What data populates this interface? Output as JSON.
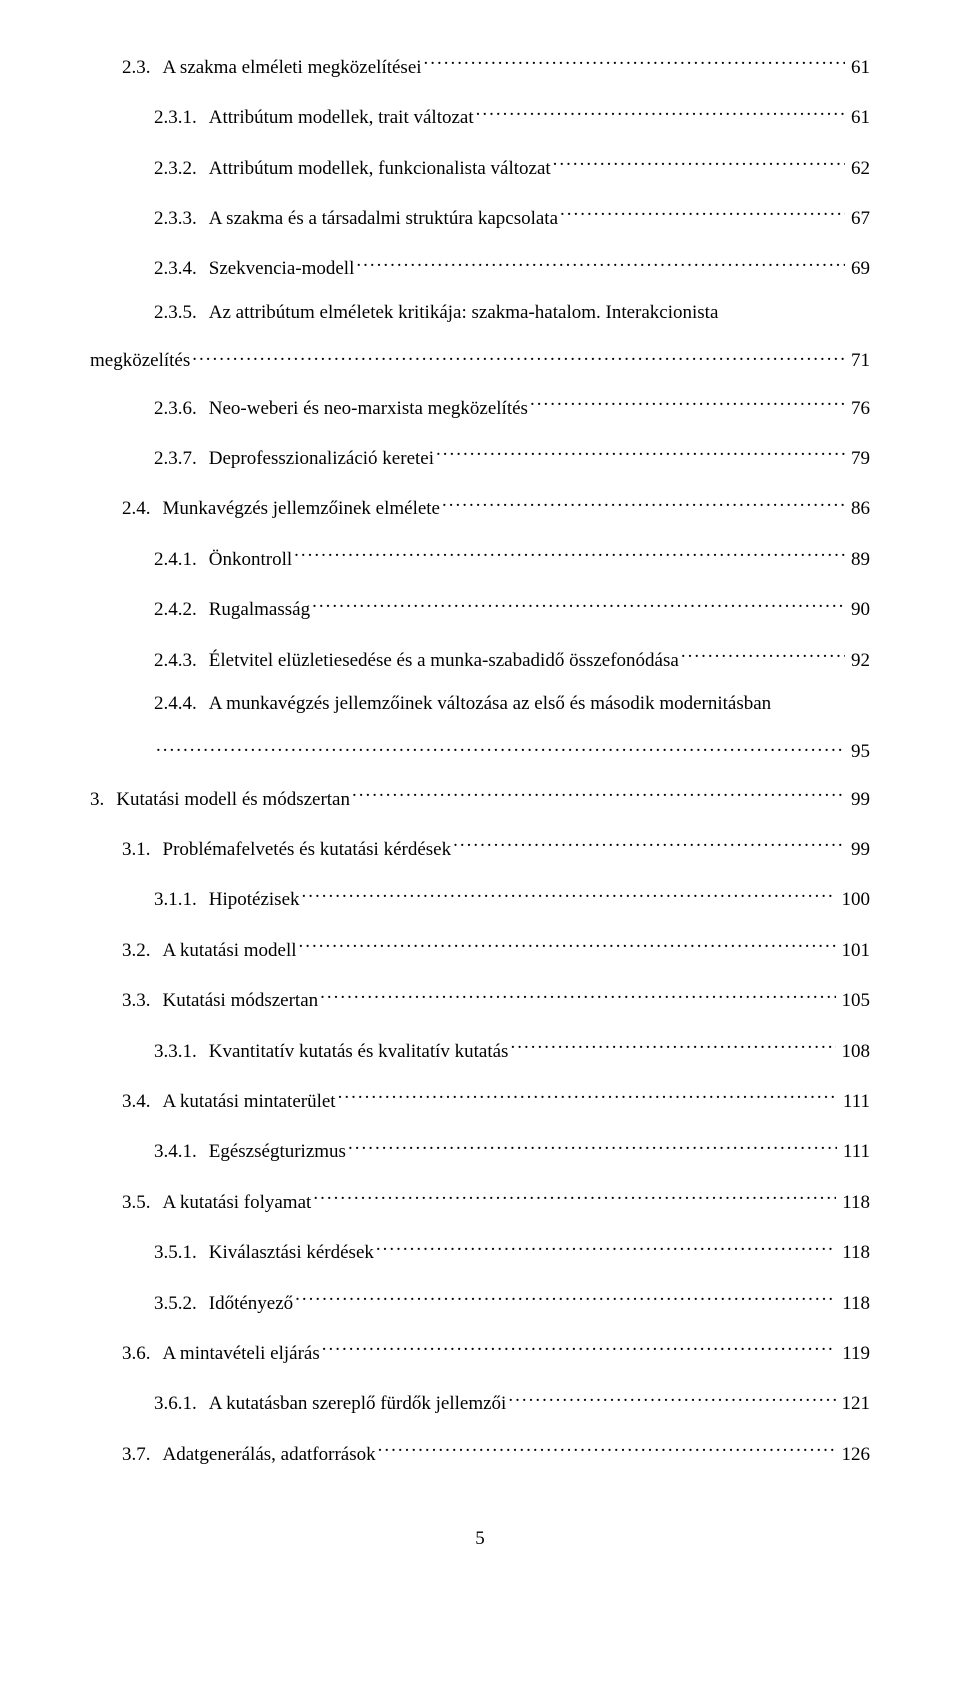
{
  "footer_page_number": "5",
  "entries": [
    {
      "indent": 1,
      "num": "2.3.",
      "title": "A szakma elméleti megközelítései",
      "page": "61"
    },
    {
      "indent": 2,
      "num": "2.3.1.",
      "title": "Attribútum modellek, trait változat",
      "page": "61"
    },
    {
      "indent": 2,
      "num": "2.3.2.",
      "title": "Attribútum modellek, funkcionalista változat",
      "page": "62"
    },
    {
      "indent": 2,
      "num": "2.3.3.",
      "title": "A szakma és a társadalmi struktúra kapcsolata",
      "page": "67"
    },
    {
      "indent": 2,
      "num": "2.3.4.",
      "title": "Szekvencia-modell",
      "page": "69"
    },
    {
      "type": "multiline",
      "indent": 2,
      "num": "2.3.5.",
      "title_line1": "Az  attribútum  elméletek  kritikája:  szakma-hatalom.  Interakcionista",
      "title_line2": "megközelítés",
      "page": "71",
      "cont_indent": 0
    },
    {
      "indent": 2,
      "num": "2.3.6.",
      "title": "Neo-weberi és neo-marxista megközelítés",
      "page": "76"
    },
    {
      "indent": 2,
      "num": "2.3.7.",
      "title": "Deprofesszionalizáció keretei",
      "page": "79"
    },
    {
      "indent": 1,
      "num": "2.4.",
      "title": "Munkavégzés jellemzőinek elmélete",
      "page": "86"
    },
    {
      "indent": 2,
      "num": "2.4.1.",
      "title": "Önkontroll",
      "page": "89"
    },
    {
      "indent": 2,
      "num": "2.4.2.",
      "title": "Rugalmasság",
      "page": "90"
    },
    {
      "indent": 2,
      "num": "2.4.3.",
      "title": "Életvitel elüzletiesedése és a munka-szabadidő összefonódása",
      "page": "92"
    },
    {
      "type": "multiline",
      "indent": 2,
      "num": "2.4.4.",
      "title_line1": "A munkavégzés jellemzőinek változása az első és második modernitásban",
      "title_line2": "",
      "page": "95",
      "cont_indent": 2
    },
    {
      "indent": 0,
      "num": "3.",
      "title": "Kutatási modell és módszertan",
      "page": "99"
    },
    {
      "indent": 1,
      "num": "3.1.",
      "title": "Problémafelvetés és kutatási kérdések",
      "page": "99"
    },
    {
      "indent": 2,
      "num": "3.1.1.",
      "title": "Hipotézisek",
      "page": "100"
    },
    {
      "indent": 1,
      "num": "3.2.",
      "title": "A kutatási modell",
      "page": "101"
    },
    {
      "indent": 1,
      "num": "3.3.",
      "title": "Kutatási módszertan",
      "page": "105"
    },
    {
      "indent": 2,
      "num": "3.3.1.",
      "title": "Kvantitatív kutatás és kvalitatív kutatás",
      "page": "108"
    },
    {
      "indent": 1,
      "num": "3.4.",
      "title": "A kutatási mintaterület",
      "page": "111"
    },
    {
      "indent": 2,
      "num": "3.4.1.",
      "title": "Egészségturizmus",
      "page": "111"
    },
    {
      "indent": 1,
      "num": "3.5.",
      "title": "A kutatási folyamat",
      "page": "118"
    },
    {
      "indent": 2,
      "num": "3.5.1.",
      "title": "Kiválasztási kérdések",
      "page": "118"
    },
    {
      "indent": 2,
      "num": "3.5.2.",
      "title": "Időtényező",
      "page": "118"
    },
    {
      "indent": 1,
      "num": "3.6.",
      "title": "A mintavételi eljárás",
      "page": "119"
    },
    {
      "indent": 2,
      "num": "3.6.1.",
      "title": "A kutatásban szereplő fürdők jellemzői",
      "page": "121"
    },
    {
      "indent": 1,
      "num": "3.7.",
      "title": "Adatgenerálás, adatforrások",
      "page": "126"
    }
  ]
}
